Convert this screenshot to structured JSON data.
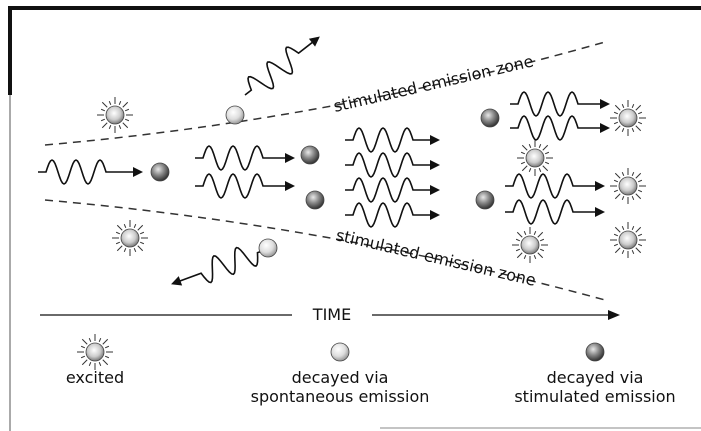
{
  "zone_labels": [
    "stimulated emission zone",
    "stimulated emission zone"
  ],
  "time_label": "TIME",
  "legend": [
    {
      "lines": [
        "excited"
      ]
    },
    {
      "lines": [
        "decayed via",
        "spontaneous emission"
      ]
    },
    {
      "lines": [
        "decayed via",
        "stimulated emission"
      ]
    }
  ]
}
